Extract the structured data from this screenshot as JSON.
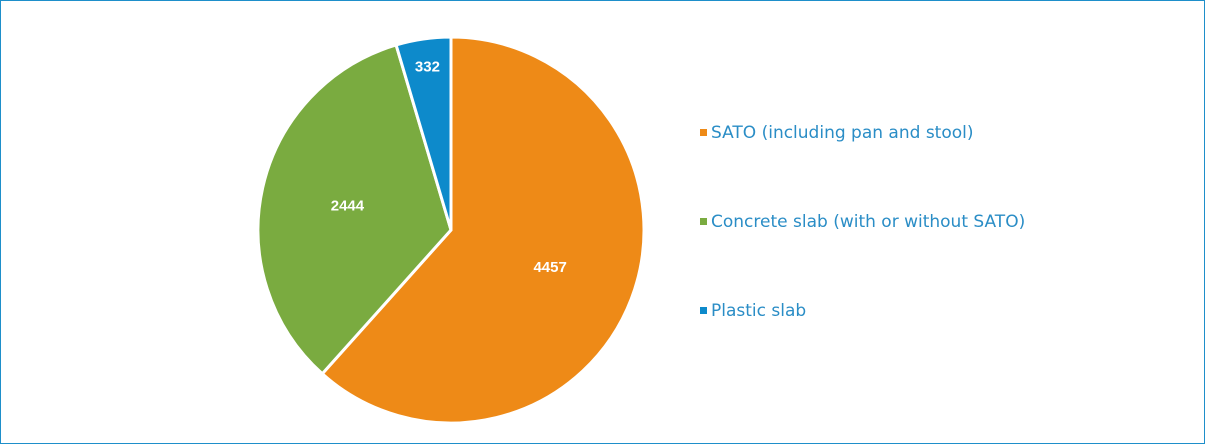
{
  "chart_data": {
    "type": "pie",
    "categories": [
      "SATO (including pan and stool)",
      "Concrete slab (with or without SATO)",
      "Plastic slab"
    ],
    "values": [
      4457,
      2444,
      332
    ],
    "colors": [
      "#ee8a17",
      "#7aab40",
      "#0d8acb"
    ],
    "legend": "right"
  }
}
